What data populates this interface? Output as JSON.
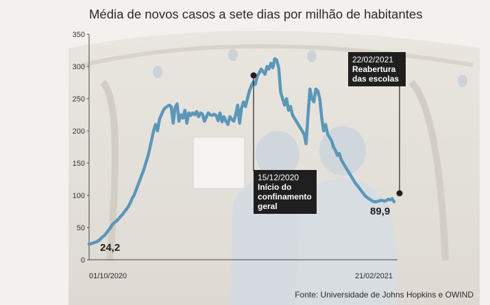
{
  "title": "Média de novos casos a sete dias por milhão de habitantes",
  "source": "Fonte: Universidade de Johns Hopkins e OWIND",
  "colors": {
    "line": "#5b97b9",
    "annotation_bg": "#1f1f1f",
    "text": "#2a2a2a"
  },
  "annotations": [
    {
      "date": "15/12/2020",
      "text": "Início do confinamento geral"
    },
    {
      "date": "22/02/2021",
      "text": "Reabertura das escolas"
    }
  ],
  "value_labels": {
    "first": "24,2",
    "last": "89,9"
  },
  "chart_data": {
    "type": "line",
    "title": "Média de novos casos a sete dias por milhão de habitantes",
    "xlabel": "",
    "ylabel": "",
    "x_tick_labels": [
      "01/10/2020",
      "21/02/2021"
    ],
    "y_ticks": [
      0,
      50,
      100,
      150,
      200,
      250,
      300,
      350
    ],
    "ylim": [
      0,
      350
    ],
    "grid": false,
    "series": [
      {
        "values": [
          24.2,
          25,
          26,
          27,
          28,
          30,
          33,
          36,
          38,
          42,
          46,
          50,
          55,
          58,
          60,
          63,
          67,
          70,
          74,
          78,
          82,
          88,
          95,
          100,
          108,
          116,
          124,
          132,
          140,
          150,
          160,
          172,
          186,
          200,
          210,
          200,
          218,
          225,
          232,
          236,
          238,
          240,
          238,
          212,
          236,
          242,
          215,
          225,
          220,
          232,
          212,
          228,
          224,
          228,
          225,
          230,
          222,
          228,
          226,
          215,
          222,
          228,
          225,
          224,
          226,
          224,
          216,
          228,
          214,
          222,
          215,
          210,
          222,
          218,
          215,
          225,
          240,
          212,
          236,
          245,
          238,
          250,
          262,
          270,
          276,
          272,
          285,
          290,
          296,
          292,
          288,
          300,
          296,
          305,
          298,
          312,
          310,
          298,
          260,
          250,
          240,
          250,
          232,
          238,
          225,
          220,
          215,
          210,
          205,
          200,
          195,
          180,
          225,
          265,
          250,
          245,
          265,
          262,
          250,
          220,
          200,
          210,
          195,
          190,
          185,
          175,
          170,
          162,
          165,
          155,
          150,
          145,
          140,
          135,
          130,
          125,
          120,
          116,
          112,
          108,
          104,
          100,
          97,
          95,
          93,
          91,
          90,
          90,
          91,
          92,
          92,
          91,
          92,
          94,
          93,
          95,
          89.9
        ]
      }
    ]
  }
}
